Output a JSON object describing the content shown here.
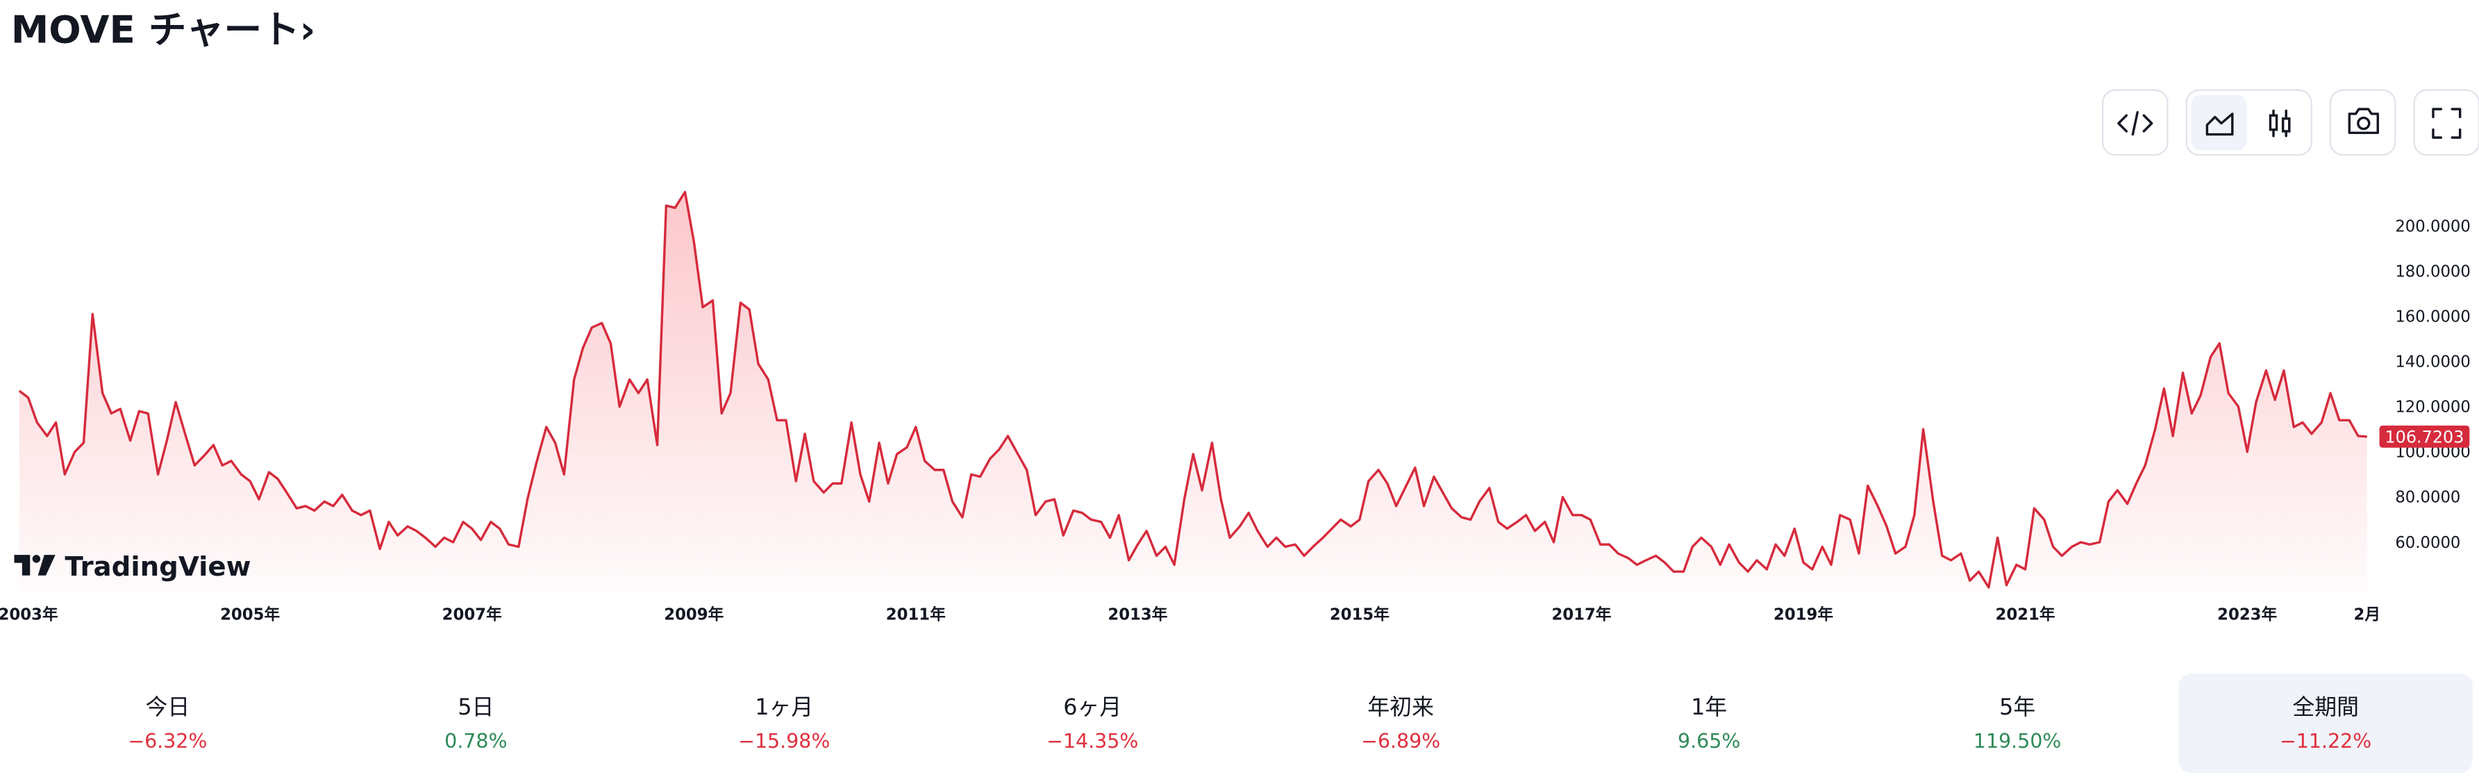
{
  "header": {
    "title": "MOVE チャート›"
  },
  "watermark": "TradingView",
  "chart_data": {
    "type": "area",
    "xlim": [
      2002.86,
      2024.12
    ],
    "ylim": [
      38,
      230
    ],
    "xticks": [
      {
        "value": 2003,
        "label": "2003年"
      },
      {
        "value": 2005,
        "label": "2005年"
      },
      {
        "value": 2007,
        "label": "2007年"
      },
      {
        "value": 2009,
        "label": "2009年"
      },
      {
        "value": 2011,
        "label": "2011年"
      },
      {
        "value": 2013,
        "label": "2013年"
      },
      {
        "value": 2015,
        "label": "2015年"
      },
      {
        "value": 2017,
        "label": "2017年"
      },
      {
        "value": 2019,
        "label": "2019年"
      },
      {
        "value": 2021,
        "label": "2021年"
      },
      {
        "value": 2023,
        "label": "2023年"
      },
      {
        "value": 2024.08,
        "label": "2月"
      }
    ],
    "yticks": [
      {
        "value": 60,
        "label": "60.0000"
      },
      {
        "value": 80,
        "label": "80.0000"
      },
      {
        "value": 100,
        "label": "100.0000"
      },
      {
        "value": 120,
        "label": "120.0000"
      },
      {
        "value": 140,
        "label": "140.0000"
      },
      {
        "value": 160,
        "label": "160.0000"
      },
      {
        "value": 180,
        "label": "180.0000"
      },
      {
        "value": 200,
        "label": "200.0000"
      }
    ],
    "grid": false,
    "x": [
      2002.92,
      2003.0,
      2003.08,
      2003.17,
      2003.25,
      2003.33,
      2003.42,
      2003.5,
      2003.58,
      2003.67,
      2003.75,
      2003.83,
      2003.92,
      2004.0,
      2004.08,
      2004.17,
      2004.25,
      2004.33,
      2004.42,
      2004.5,
      2004.58,
      2004.67,
      2004.75,
      2004.83,
      2004.92,
      2005.0,
      2005.08,
      2005.17,
      2005.25,
      2005.33,
      2005.42,
      2005.5,
      2005.58,
      2005.67,
      2005.75,
      2005.83,
      2005.92,
      2006.0,
      2006.08,
      2006.17,
      2006.25,
      2006.33,
      2006.42,
      2006.5,
      2006.58,
      2006.67,
      2006.75,
      2006.83,
      2006.92,
      2007.0,
      2007.08,
      2007.17,
      2007.25,
      2007.33,
      2007.42,
      2007.5,
      2007.58,
      2007.67,
      2007.75,
      2007.83,
      2007.92,
      2008.0,
      2008.08,
      2008.17,
      2008.25,
      2008.33,
      2008.42,
      2008.5,
      2008.58,
      2008.67,
      2008.75,
      2008.83,
      2008.92,
      2009.0,
      2009.08,
      2009.17,
      2009.25,
      2009.33,
      2009.42,
      2009.5,
      2009.58,
      2009.67,
      2009.75,
      2009.83,
      2009.92,
      2010.0,
      2010.08,
      2010.17,
      2010.25,
      2010.33,
      2010.42,
      2010.5,
      2010.58,
      2010.67,
      2010.75,
      2010.83,
      2010.92,
      2011.0,
      2011.08,
      2011.17,
      2011.25,
      2011.33,
      2011.42,
      2011.5,
      2011.58,
      2011.67,
      2011.75,
      2011.83,
      2011.92,
      2012.0,
      2012.08,
      2012.17,
      2012.25,
      2012.33,
      2012.42,
      2012.5,
      2012.58,
      2012.67,
      2012.75,
      2012.83,
      2012.92,
      2013.0,
      2013.08,
      2013.17,
      2013.25,
      2013.33,
      2013.42,
      2013.5,
      2013.58,
      2013.67,
      2013.75,
      2013.83,
      2013.92,
      2014.0,
      2014.08,
      2014.17,
      2014.25,
      2014.33,
      2014.42,
      2014.5,
      2014.58,
      2014.67,
      2014.75,
      2014.83,
      2014.92,
      2015.0,
      2015.08,
      2015.17,
      2015.25,
      2015.33,
      2015.42,
      2015.5,
      2015.58,
      2015.67,
      2015.75,
      2015.83,
      2015.92,
      2016.0,
      2016.08,
      2016.17,
      2016.25,
      2016.33,
      2016.42,
      2016.5,
      2016.58,
      2016.67,
      2016.75,
      2016.83,
      2016.92,
      2017.0,
      2017.08,
      2017.17,
      2017.25,
      2017.33,
      2017.42,
      2017.5,
      2017.58,
      2017.67,
      2017.75,
      2017.83,
      2017.92,
      2018.0,
      2018.08,
      2018.17,
      2018.25,
      2018.33,
      2018.42,
      2018.5,
      2018.58,
      2018.67,
      2018.75,
      2018.83,
      2018.92,
      2019.0,
      2019.08,
      2019.17,
      2019.25,
      2019.33,
      2019.42,
      2019.5,
      2019.58,
      2019.67,
      2019.75,
      2019.83,
      2019.92,
      2020.0,
      2020.08,
      2020.17,
      2020.25,
      2020.33,
      2020.42,
      2020.5,
      2020.58,
      2020.67,
      2020.75,
      2020.83,
      2020.92,
      2021.0,
      2021.08,
      2021.17,
      2021.25,
      2021.33,
      2021.42,
      2021.5,
      2021.58,
      2021.67,
      2021.75,
      2021.83,
      2021.92,
      2022.0,
      2022.08,
      2022.17,
      2022.25,
      2022.33,
      2022.42,
      2022.5,
      2022.58,
      2022.67,
      2022.75,
      2022.83,
      2022.92,
      2023.0,
      2023.08,
      2023.17,
      2023.25,
      2023.33,
      2023.42,
      2023.5,
      2023.58,
      2023.67,
      2023.75,
      2023.83,
      2023.92,
      2024.0,
      2024.08
    ],
    "series": [
      {
        "name": "MOVE",
        "color": "#d62b3c",
        "values": [
          127,
          124,
          113,
          107,
          113,
          90,
          100,
          104,
          161,
          126,
          117,
          119,
          105,
          118,
          117,
          90,
          105,
          122,
          107,
          94,
          98,
          103,
          94,
          96,
          90,
          87,
          79,
          91,
          88,
          82,
          75,
          76,
          74,
          78,
          76,
          81,
          74,
          72,
          74,
          57,
          69,
          63,
          67,
          65,
          62,
          58,
          62,
          60,
          69,
          66,
          61,
          69,
          66,
          59,
          58,
          79,
          95,
          111,
          104,
          90,
          132,
          146,
          155,
          157,
          148,
          120,
          132,
          126,
          132,
          103,
          209,
          208,
          215,
          193,
          164,
          167,
          117,
          126,
          166,
          163,
          139,
          132,
          114,
          114,
          87,
          108,
          87,
          82,
          86,
          86,
          113,
          90,
          78,
          104,
          86,
          99,
          102,
          111,
          96,
          92,
          92,
          78,
          71,
          90,
          89,
          97,
          101,
          107,
          99,
          92,
          72,
          78,
          79,
          63,
          74,
          73,
          70,
          69,
          62,
          72,
          52,
          59,
          65,
          54,
          58,
          50,
          79,
          99,
          83,
          104,
          79,
          62,
          67,
          73,
          65,
          58,
          62,
          58,
          59,
          54,
          58,
          62,
          66,
          70,
          67,
          70,
          87,
          92,
          86,
          76,
          85,
          93,
          76,
          89,
          82,
          75,
          71,
          70,
          78,
          84,
          69,
          66,
          69,
          72,
          65,
          69,
          60,
          80,
          72,
          72,
          70,
          59,
          59,
          55,
          53,
          50,
          52,
          54,
          51,
          47,
          47,
          58,
          62,
          58,
          50,
          59,
          51,
          47,
          52,
          48,
          59,
          54,
          66,
          51,
          48,
          58,
          50,
          72,
          70,
          55,
          85,
          76,
          67,
          55,
          58,
          72,
          110,
          78,
          54,
          52,
          55,
          43,
          47,
          40,
          62,
          41,
          50,
          48,
          75,
          70,
          58,
          54,
          58,
          60,
          59,
          60,
          78,
          83,
          77,
          86,
          94,
          110,
          128,
          107,
          135,
          117,
          125,
          142,
          148,
          126,
          120,
          100,
          122,
          136,
          123,
          136,
          111,
          113,
          108,
          113,
          126,
          114,
          114,
          107,
          106.7203
        ]
      }
    ]
  },
  "performance": [
    {
      "period": "今日",
      "change": "−6.32%"
    },
    {
      "period": "5日",
      "change": "0.78%"
    },
    {
      "period": "1ヶ月",
      "change": "−15.98%"
    },
    {
      "period": "6ヶ月",
      "change": "−14.35%"
    },
    {
      "period": "年初来",
      "change": "−6.89%"
    },
    {
      "period": "1年",
      "change": "9.65%"
    },
    {
      "period": "5年",
      "change": "119.50%"
    },
    {
      "period": "全期間",
      "change": "−11.22%"
    }
  ]
}
